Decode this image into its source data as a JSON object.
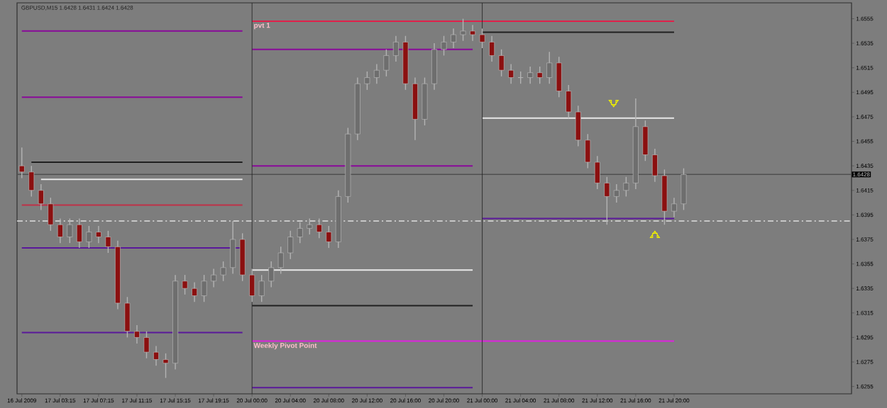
{
  "chart_data": {
    "type": "candlestick",
    "title": "GBPUSD,M15 1.6428 1.6431 1.6424 1.6428",
    "categories": [
      "16 Jul 2009",
      null,
      null,
      null,
      "17 Jul 03:15",
      null,
      null,
      null,
      "17 Jul 07:15",
      null,
      null,
      null,
      "17 Jul 11:15",
      null,
      null,
      null,
      "17 Jul 15:15",
      null,
      null,
      null,
      "17 Jul 19:15",
      null,
      null,
      null,
      "20 Jul 00:00",
      null,
      null,
      null,
      "20 Jul 04:00",
      null,
      null,
      null,
      "20 Jul 08:00",
      null,
      null,
      null,
      "20 Jul 12:00",
      null,
      null,
      null,
      "20 Jul 16:00",
      null,
      null,
      null,
      "20 Jul 20:00",
      null,
      null,
      null,
      "21 Jul 00:00",
      null,
      null,
      null,
      "21 Jul 04:00",
      null,
      null,
      null,
      "21 Jul 08:00",
      null,
      null,
      null,
      "21 Jul 12:00",
      null,
      null,
      null,
      "21 Jul 16:00",
      null,
      null,
      null,
      "21 Jul 20:00",
      null,
      null,
      null,
      null,
      null,
      null,
      null,
      null,
      null,
      null,
      null,
      null,
      null,
      null,
      null,
      null,
      null,
      null
    ],
    "ohlc": [
      [
        1.6435,
        1.645,
        1.6425,
        1.643
      ],
      [
        1.643,
        1.6435,
        1.641,
        1.6415
      ],
      [
        1.6415,
        1.642,
        1.6399,
        1.6404
      ],
      [
        1.6404,
        1.6409,
        1.6382,
        1.6387
      ],
      [
        1.6387,
        1.6392,
        1.6372,
        1.6377
      ],
      [
        1.6377,
        1.6392,
        1.6372,
        1.6387
      ],
      [
        1.6387,
        1.6392,
        1.6368,
        1.6373
      ],
      [
        1.6373,
        1.6386,
        1.6368,
        1.6381
      ],
      [
        1.6381,
        1.6386,
        1.6372,
        1.6377
      ],
      [
        1.6377,
        1.6382,
        1.6364,
        1.6369
      ],
      [
        1.6369,
        1.6374,
        1.6318,
        1.6323
      ],
      [
        1.6323,
        1.6328,
        1.6295,
        1.63
      ],
      [
        1.63,
        1.6305,
        1.629,
        1.6295
      ],
      [
        1.6295,
        1.63,
        1.6278,
        1.6283
      ],
      [
        1.6283,
        1.6288,
        1.6272,
        1.6277
      ],
      [
        1.6277,
        1.6282,
        1.6262,
        1.6274
      ],
      [
        1.6274,
        1.6346,
        1.6269,
        1.6341
      ],
      [
        1.6341,
        1.6346,
        1.633,
        1.6335
      ],
      [
        1.6335,
        1.634,
        1.6324,
        1.6329
      ],
      [
        1.6329,
        1.6346,
        1.6324,
        1.6341
      ],
      [
        1.6341,
        1.6351,
        1.6336,
        1.6346
      ],
      [
        1.6346,
        1.6357,
        1.6341,
        1.6352
      ],
      [
        1.6352,
        1.639,
        1.6347,
        1.6375
      ],
      [
        1.6375,
        1.638,
        1.6341,
        1.6346
      ],
      [
        1.6346,
        1.6351,
        1.6324,
        1.6329
      ],
      [
        1.6329,
        1.6346,
        1.6324,
        1.6341
      ],
      [
        1.6341,
        1.6357,
        1.6336,
        1.6352
      ],
      [
        1.6352,
        1.6369,
        1.6347,
        1.6364
      ],
      [
        1.6364,
        1.6382,
        1.6359,
        1.6377
      ],
      [
        1.6377,
        1.6389,
        1.6372,
        1.6384
      ],
      [
        1.6384,
        1.6392,
        1.6379,
        1.6387
      ],
      [
        1.6387,
        1.6392,
        1.6376,
        1.6381
      ],
      [
        1.6381,
        1.6386,
        1.6368,
        1.6373
      ],
      [
        1.6373,
        1.6415,
        1.6368,
        1.641
      ],
      [
        1.641,
        1.6466,
        1.6405,
        1.6461
      ],
      [
        1.6461,
        1.6507,
        1.6456,
        1.6502
      ],
      [
        1.6502,
        1.6512,
        1.6497,
        1.6507
      ],
      [
        1.6507,
        1.6518,
        1.6502,
        1.6513
      ],
      [
        1.6513,
        1.653,
        1.6508,
        1.6525
      ],
      [
        1.6525,
        1.6541,
        1.652,
        1.6536
      ],
      [
        1.6536,
        1.6541,
        1.6497,
        1.6502
      ],
      [
        1.6502,
        1.6507,
        1.6456,
        1.6473
      ],
      [
        1.6473,
        1.6507,
        1.6468,
        1.6502
      ],
      [
        1.6502,
        1.6535,
        1.6497,
        1.653
      ],
      [
        1.653,
        1.6541,
        1.6525,
        1.6536
      ],
      [
        1.6536,
        1.6547,
        1.6531,
        1.6542
      ],
      [
        1.6542,
        1.6555,
        1.6537,
        1.6545
      ],
      [
        1.6545,
        1.655,
        1.6537,
        1.6542
      ],
      [
        1.6542,
        1.6547,
        1.6531,
        1.6536
      ],
      [
        1.6536,
        1.6541,
        1.652,
        1.6525
      ],
      [
        1.6525,
        1.653,
        1.6508,
        1.6513
      ],
      [
        1.6513,
        1.6518,
        1.6502,
        1.6507
      ],
      [
        1.6507,
        1.6512,
        1.6502,
        1.6507
      ],
      [
        1.6507,
        1.6516,
        1.6502,
        1.6511
      ],
      [
        1.6511,
        1.6516,
        1.6502,
        1.6507
      ],
      [
        1.6507,
        1.6528,
        1.6502,
        1.6519
      ],
      [
        1.6519,
        1.6524,
        1.6491,
        1.6496
      ],
      [
        1.6496,
        1.6501,
        1.6474,
        1.6479
      ],
      [
        1.6479,
        1.6484,
        1.6451,
        1.6456
      ],
      [
        1.6456,
        1.6461,
        1.6433,
        1.6438
      ],
      [
        1.6438,
        1.6443,
        1.6416,
        1.6421
      ],
      [
        1.6421,
        1.6426,
        1.6387,
        1.641
      ],
      [
        1.641,
        1.642,
        1.6405,
        1.6415
      ],
      [
        1.6415,
        1.6426,
        1.641,
        1.6421
      ],
      [
        1.6421,
        1.649,
        1.6416,
        1.6467
      ],
      [
        1.6467,
        1.6472,
        1.6439,
        1.6444
      ],
      [
        1.6444,
        1.6449,
        1.6422,
        1.6427
      ],
      [
        1.6427,
        1.6432,
        1.6387,
        1.6398
      ],
      [
        1.6398,
        1.6409,
        1.6393,
        1.6404
      ],
      [
        1.6404,
        1.6433,
        1.6399,
        1.6428
      ],
      null,
      null,
      null,
      null,
      null,
      null,
      null,
      null,
      null,
      null,
      null,
      null,
      null,
      null,
      null,
      null,
      null
    ],
    "series": [
      {
        "type": "line",
        "color": "#8a0a9a",
        "values": [
          1.6545,
          1.6545,
          1.6545,
          1.6545,
          1.6545,
          1.6545,
          1.6545,
          1.6545,
          1.6545,
          1.6545,
          1.6545,
          1.6545,
          1.6545,
          1.6545,
          1.6545,
          1.6545,
          1.6545,
          1.6545,
          1.6545,
          1.6545,
          1.6545,
          1.6545,
          1.6545,
          1.6545,
          null,
          null,
          null,
          null,
          null,
          null,
          null,
          null,
          null,
          null,
          null,
          null,
          null,
          null,
          null,
          null,
          null,
          null,
          null,
          null,
          null,
          null,
          null,
          null,
          null,
          null,
          null,
          null,
          null,
          null,
          null,
          null,
          null,
          null,
          null,
          null,
          null,
          null,
          null,
          null,
          null,
          null,
          null,
          null,
          null,
          null,
          null,
          null,
          null,
          null,
          null,
          null,
          null,
          null,
          null,
          null,
          null,
          null,
          null,
          null,
          null,
          null,
          null
        ]
      },
      {
        "type": "line",
        "color": "#8a0a9a",
        "values": [
          1.6491,
          1.6491,
          1.6491,
          1.6491,
          1.6491,
          1.6491,
          1.6491,
          1.6491,
          1.6491,
          1.6491,
          1.6491,
          1.6491,
          1.6491,
          1.6491,
          1.6491,
          1.6491,
          1.6491,
          1.6491,
          1.6491,
          1.6491,
          1.6491,
          1.6491,
          1.6491,
          1.6491,
          null,
          null,
          null,
          null,
          null,
          null,
          null,
          null,
          null,
          null,
          null,
          null,
          null,
          null,
          null,
          null,
          null,
          null,
          null,
          null,
          null,
          null,
          null,
          null,
          null,
          null,
          null,
          null,
          null,
          null,
          null,
          null,
          null,
          null,
          null,
          null,
          null,
          null,
          null,
          null,
          null,
          null,
          null,
          null,
          null,
          null,
          null,
          null,
          null,
          null,
          null,
          null,
          null,
          null,
          null,
          null,
          null,
          null,
          null,
          null,
          null,
          null,
          null
        ]
      },
      {
        "type": "line",
        "color": "#202020",
        "values": [
          null,
          1.6438,
          1.6438,
          1.6438,
          1.6438,
          1.6438,
          1.6438,
          1.6438,
          1.6438,
          1.6438,
          1.6438,
          1.6438,
          1.6438,
          1.6438,
          1.6438,
          1.6438,
          1.6438,
          1.6438,
          1.6438,
          1.6438,
          1.6438,
          1.6438,
          1.6438,
          1.6438,
          null,
          null,
          null,
          null,
          null,
          null,
          null,
          null,
          null,
          null,
          null,
          null,
          null,
          null,
          null,
          null,
          null,
          null,
          null,
          null,
          null,
          null,
          null,
          null,
          null,
          null,
          null,
          null,
          null,
          null,
          null,
          null,
          null,
          null,
          null,
          null,
          null,
          null,
          null,
          null,
          null,
          null,
          null,
          null,
          null,
          null,
          null,
          null,
          null,
          null,
          null,
          null,
          null,
          null,
          null,
          null,
          null,
          null,
          null,
          null,
          null,
          null,
          null
        ]
      },
      {
        "type": "line",
        "color": "#e8e8e8",
        "values": [
          null,
          null,
          1.6424,
          1.6424,
          1.6424,
          1.6424,
          1.6424,
          1.6424,
          1.6424,
          1.6424,
          1.6424,
          1.6424,
          1.6424,
          1.6424,
          1.6424,
          1.6424,
          1.6424,
          1.6424,
          1.6424,
          1.6424,
          1.6424,
          1.6424,
          1.6424,
          1.6424,
          null,
          null,
          null,
          null,
          null,
          null,
          null,
          null,
          null,
          null,
          null,
          null,
          null,
          null,
          null,
          null,
          null,
          null,
          null,
          null,
          null,
          null,
          null,
          null,
          null,
          null,
          null,
          null,
          null,
          null,
          null,
          null,
          null,
          null,
          null,
          null,
          null,
          null,
          null,
          null,
          null,
          null,
          null,
          null,
          null,
          null,
          null,
          null,
          null,
          null,
          null,
          null,
          null,
          null,
          null,
          null,
          null,
          null,
          null,
          null,
          null,
          null,
          null
        ]
      },
      {
        "type": "line",
        "color": "#c03048",
        "values": [
          1.6403,
          1.6403,
          1.6403,
          1.6403,
          1.6403,
          1.6403,
          1.6403,
          1.6403,
          1.6403,
          1.6403,
          1.6403,
          1.6403,
          1.6403,
          1.6403,
          1.6403,
          1.6403,
          1.6403,
          1.6403,
          1.6403,
          1.6403,
          1.6403,
          1.6403,
          1.6403,
          1.6403,
          null,
          null,
          null,
          null,
          null,
          null,
          null,
          null,
          null,
          null,
          null,
          null,
          null,
          null,
          null,
          null,
          null,
          null,
          null,
          null,
          null,
          null,
          null,
          null,
          null,
          null,
          null,
          null,
          null,
          null,
          null,
          null,
          null,
          null,
          null,
          null,
          null,
          null,
          null,
          null,
          null,
          null,
          null,
          null,
          null,
          null,
          null,
          null,
          null,
          null,
          null,
          null,
          null,
          null,
          null,
          null,
          null,
          null,
          null,
          null,
          null,
          null,
          null
        ]
      },
      {
        "type": "line",
        "color": "#5a189a",
        "values": [
          1.6368,
          1.6368,
          1.6368,
          1.6368,
          1.6368,
          1.6368,
          1.6368,
          1.6368,
          1.6368,
          1.6368,
          1.6368,
          1.6368,
          1.6368,
          1.6368,
          1.6368,
          1.6368,
          1.6368,
          1.6368,
          1.6368,
          1.6368,
          1.6368,
          1.6368,
          1.6368,
          1.6368,
          null,
          null,
          null,
          null,
          null,
          null,
          null,
          null,
          null,
          null,
          null,
          null,
          null,
          null,
          null,
          null,
          null,
          null,
          null,
          null,
          null,
          null,
          null,
          null,
          null,
          null,
          null,
          null,
          null,
          null,
          null,
          null,
          null,
          null,
          null,
          null,
          null,
          null,
          null,
          null,
          null,
          null,
          null,
          null,
          null,
          null,
          null,
          null,
          null,
          null,
          null,
          null,
          null,
          null,
          null,
          null,
          null,
          null,
          null,
          null,
          null,
          null,
          null
        ]
      },
      {
        "type": "line",
        "color": "#5a189a",
        "values": [
          1.6299,
          1.6299,
          1.6299,
          1.6299,
          1.6299,
          1.6299,
          1.6299,
          1.6299,
          1.6299,
          1.6299,
          1.6299,
          1.6299,
          1.6299,
          1.6299,
          1.6299,
          1.6299,
          1.6299,
          1.6299,
          1.6299,
          1.6299,
          1.6299,
          1.6299,
          1.6299,
          1.6299,
          null,
          null,
          null,
          null,
          null,
          null,
          null,
          null,
          null,
          null,
          null,
          null,
          null,
          null,
          null,
          null,
          null,
          null,
          null,
          null,
          null,
          null,
          null,
          null,
          null,
          null,
          null,
          null,
          null,
          null,
          null,
          null,
          null,
          null,
          null,
          null,
          null,
          null,
          null,
          null,
          null,
          null,
          null,
          null,
          null,
          null,
          null,
          null,
          null,
          null,
          null,
          null,
          null,
          null,
          null,
          null,
          null,
          null,
          null,
          null,
          null,
          null,
          null
        ]
      },
      {
        "type": "line",
        "color": "#e0204a",
        "values": [
          null,
          null,
          null,
          null,
          null,
          null,
          null,
          null,
          null,
          null,
          null,
          null,
          null,
          null,
          null,
          null,
          null,
          null,
          null,
          null,
          null,
          null,
          null,
          null,
          1.6553,
          1.6553,
          1.6553,
          1.6553,
          1.6553,
          1.6553,
          1.6553,
          1.6553,
          1.6553,
          1.6553,
          1.6553,
          1.6553,
          1.6553,
          1.6553,
          1.6553,
          1.6553,
          1.6553,
          1.6553,
          1.6553,
          1.6553,
          1.6553,
          1.6553,
          1.6553,
          1.6553,
          1.6553,
          1.6553,
          1.6553,
          1.6553,
          1.6553,
          1.6553,
          1.6553,
          1.6553,
          1.6553,
          1.6553,
          1.6553,
          1.6553,
          1.6553,
          1.6553,
          1.6553,
          1.6553,
          1.6553,
          1.6553,
          1.6553,
          1.6553,
          1.6553,
          null,
          null,
          null,
          null,
          null,
          null,
          null,
          null,
          null,
          null,
          null,
          null,
          null,
          null,
          null,
          null,
          null,
          null
        ]
      },
      {
        "type": "line",
        "color": "#8a0a9a",
        "values": [
          null,
          null,
          null,
          null,
          null,
          null,
          null,
          null,
          null,
          null,
          null,
          null,
          null,
          null,
          null,
          null,
          null,
          null,
          null,
          null,
          null,
          null,
          null,
          null,
          1.653,
          1.653,
          1.653,
          1.653,
          1.653,
          1.653,
          1.653,
          1.653,
          1.653,
          1.653,
          1.653,
          1.653,
          1.653,
          1.653,
          1.653,
          1.653,
          1.653,
          1.653,
          1.653,
          1.653,
          1.653,
          1.653,
          1.653,
          1.653,
          null,
          null,
          null,
          null,
          null,
          null,
          null,
          null,
          null,
          null,
          null,
          null,
          null,
          null,
          null,
          null,
          null,
          null,
          null,
          null,
          null,
          null,
          null,
          null,
          null,
          null,
          null,
          null,
          null,
          null,
          null,
          null,
          null,
          null,
          null,
          null,
          null,
          null,
          null
        ]
      },
      {
        "type": "line",
        "color": "#8a0a9a",
        "values": [
          null,
          null,
          null,
          null,
          null,
          null,
          null,
          null,
          null,
          null,
          null,
          null,
          null,
          null,
          null,
          null,
          null,
          null,
          null,
          null,
          null,
          null,
          null,
          null,
          1.6435,
          1.6435,
          1.6435,
          1.6435,
          1.6435,
          1.6435,
          1.6435,
          1.6435,
          1.6435,
          1.6435,
          1.6435,
          1.6435,
          1.6435,
          1.6435,
          1.6435,
          1.6435,
          1.6435,
          1.6435,
          1.6435,
          1.6435,
          1.6435,
          1.6435,
          1.6435,
          1.6435,
          null,
          null,
          null,
          null,
          null,
          null,
          null,
          null,
          null,
          null,
          null,
          null,
          null,
          null,
          null,
          null,
          null,
          null,
          null,
          null,
          null,
          null,
          null,
          null,
          null,
          null,
          null,
          null,
          null,
          null,
          null,
          null,
          null,
          null,
          null,
          null,
          null,
          null,
          null
        ]
      },
      {
        "type": "line",
        "color": "#e8e8e8",
        "values": [
          null,
          null,
          null,
          null,
          null,
          null,
          null,
          null,
          null,
          null,
          null,
          null,
          null,
          null,
          null,
          null,
          null,
          null,
          null,
          null,
          null,
          null,
          null,
          null,
          1.635,
          1.635,
          1.635,
          1.635,
          1.635,
          1.635,
          1.635,
          1.635,
          1.635,
          1.635,
          1.635,
          1.635,
          1.635,
          1.635,
          1.635,
          1.635,
          1.635,
          1.635,
          1.635,
          1.635,
          1.635,
          1.635,
          1.635,
          1.635,
          null,
          null,
          null,
          null,
          null,
          null,
          null,
          null,
          null,
          null,
          null,
          null,
          null,
          null,
          null,
          null,
          null,
          null,
          null,
          null,
          null,
          null,
          null,
          null,
          null,
          null,
          null,
          null,
          null,
          null,
          null,
          null,
          null,
          null,
          null,
          null,
          null,
          null,
          null
        ]
      },
      {
        "type": "line",
        "color": "#202020",
        "values": [
          null,
          null,
          null,
          null,
          null,
          null,
          null,
          null,
          null,
          null,
          null,
          null,
          null,
          null,
          null,
          null,
          null,
          null,
          null,
          null,
          null,
          null,
          null,
          null,
          1.6321,
          1.6321,
          1.6321,
          1.6321,
          1.6321,
          1.6321,
          1.6321,
          1.6321,
          1.6321,
          1.6321,
          1.6321,
          1.6321,
          1.6321,
          1.6321,
          1.6321,
          1.6321,
          1.6321,
          1.6321,
          1.6321,
          1.6321,
          1.6321,
          1.6321,
          1.6321,
          1.6321,
          null,
          null,
          null,
          null,
          null,
          null,
          null,
          null,
          null,
          null,
          null,
          null,
          null,
          null,
          null,
          null,
          null,
          null,
          null,
          null,
          null,
          null,
          null,
          null,
          null,
          null,
          null,
          null,
          null,
          null,
          null,
          null,
          null,
          null,
          null,
          null,
          null,
          null,
          null
        ]
      },
      {
        "type": "line",
        "color": "#202020",
        "values": [
          null,
          null,
          null,
          null,
          null,
          null,
          null,
          null,
          null,
          null,
          null,
          null,
          null,
          null,
          null,
          null,
          null,
          null,
          null,
          null,
          null,
          null,
          null,
          null,
          null,
          null,
          null,
          null,
          null,
          null,
          null,
          null,
          null,
          null,
          null,
          null,
          null,
          null,
          null,
          null,
          null,
          null,
          null,
          null,
          null,
          null,
          null,
          null,
          1.6544,
          1.6544,
          1.6544,
          1.6544,
          1.6544,
          1.6544,
          1.6544,
          1.6544,
          1.6544,
          1.6544,
          1.6544,
          1.6544,
          1.6544,
          1.6544,
          1.6544,
          1.6544,
          1.6544,
          1.6544,
          1.6544,
          1.6544,
          1.6544,
          null,
          null,
          null,
          null,
          null,
          null,
          null,
          null,
          null,
          null,
          null,
          null,
          null,
          null,
          null,
          null,
          null,
          null
        ]
      },
      {
        "type": "line",
        "color": "#e8e8e8",
        "values": [
          null,
          null,
          null,
          null,
          null,
          null,
          null,
          null,
          null,
          null,
          null,
          null,
          null,
          null,
          null,
          null,
          null,
          null,
          null,
          null,
          null,
          null,
          null,
          null,
          null,
          null,
          null,
          null,
          null,
          null,
          null,
          null,
          null,
          null,
          null,
          null,
          null,
          null,
          null,
          null,
          null,
          null,
          null,
          null,
          null,
          null,
          null,
          null,
          1.6474,
          1.6474,
          1.6474,
          1.6474,
          1.6474,
          1.6474,
          1.6474,
          1.6474,
          1.6474,
          1.6474,
          1.6474,
          1.6474,
          1.6474,
          1.6474,
          1.6474,
          1.6474,
          1.6474,
          1.6474,
          1.6474,
          1.6474,
          1.6474,
          null,
          null,
          null,
          null,
          null,
          null,
          null,
          null,
          null,
          null,
          null,
          null,
          null,
          null,
          null,
          null,
          null,
          null
        ]
      },
      {
        "type": "line",
        "color": "#5a189a",
        "values": [
          null,
          null,
          null,
          null,
          null,
          null,
          null,
          null,
          null,
          null,
          null,
          null,
          null,
          null,
          null,
          null,
          null,
          null,
          null,
          null,
          null,
          null,
          null,
          null,
          null,
          null,
          null,
          null,
          null,
          null,
          null,
          null,
          null,
          null,
          null,
          null,
          null,
          null,
          null,
          null,
          null,
          null,
          null,
          null,
          null,
          null,
          null,
          null,
          1.6392,
          1.6392,
          1.6392,
          1.6392,
          1.6392,
          1.6392,
          1.6392,
          1.6392,
          1.6392,
          1.6392,
          1.6392,
          1.6392,
          1.6392,
          1.6392,
          1.6392,
          1.6392,
          1.6392,
          1.6392,
          1.6392,
          1.6392,
          1.6392,
          null,
          null,
          null,
          null,
          null,
          null,
          null,
          null,
          null,
          null,
          null,
          null,
          null,
          null,
          null,
          null,
          null,
          null
        ]
      },
      {
        "type": "line",
        "color": "#e020e0",
        "values": [
          null,
          null,
          null,
          null,
          null,
          null,
          null,
          null,
          null,
          null,
          null,
          null,
          null,
          null,
          null,
          null,
          null,
          null,
          null,
          null,
          null,
          null,
          null,
          null,
          1.6292,
          1.6292,
          1.6292,
          1.6292,
          1.6292,
          1.6292,
          1.6292,
          1.6292,
          1.6292,
          1.6292,
          1.6292,
          1.6292,
          1.6292,
          1.6292,
          1.6292,
          1.6292,
          1.6292,
          1.6292,
          1.6292,
          1.6292,
          1.6292,
          1.6292,
          1.6292,
          1.6292,
          1.6292,
          1.6292,
          1.6292,
          1.6292,
          1.6292,
          1.6292,
          1.6292,
          1.6292,
          1.6292,
          1.6292,
          1.6292,
          1.6292,
          1.6292,
          1.6292,
          1.6292,
          1.6292,
          1.6292,
          1.6292,
          1.6292,
          1.6292,
          1.6292,
          null,
          null,
          null,
          null,
          null,
          null,
          null,
          null,
          null,
          null,
          null,
          null,
          null,
          null,
          null,
          null,
          null,
          null
        ]
      },
      {
        "type": "line",
        "color": "#5a189a",
        "values": [
          null,
          null,
          null,
          null,
          null,
          null,
          null,
          null,
          null,
          null,
          null,
          null,
          null,
          null,
          null,
          null,
          null,
          null,
          null,
          null,
          null,
          null,
          null,
          null,
          1.6254,
          1.6254,
          1.6254,
          1.6254,
          1.6254,
          1.6254,
          1.6254,
          1.6254,
          1.6254,
          1.6254,
          1.6254,
          1.6254,
          1.6254,
          1.6254,
          1.6254,
          1.6254,
          1.6254,
          1.6254,
          1.6254,
          1.6254,
          1.6254,
          1.6254,
          1.6254,
          1.6254,
          null,
          null,
          null,
          null,
          null,
          null,
          null,
          null,
          null,
          null,
          null,
          null,
          null,
          null,
          null,
          null,
          null,
          null,
          null,
          null,
          null,
          null,
          null,
          null,
          null,
          null,
          null,
          null,
          null,
          null,
          null,
          null,
          null,
          null,
          null,
          null,
          null,
          null,
          null
        ]
      }
    ],
    "ref_lines": [
      {
        "axis": "y",
        "value": 1.6428,
        "label": "1.6428",
        "color": "#505050"
      },
      {
        "axis": "y",
        "value": 1.639,
        "color": "#e0e0e0",
        "line_style": "dashed"
      },
      {
        "axis": "x",
        "value": "20 Jul 00:00",
        "color": "#202020"
      },
      {
        "axis": "x",
        "value": "21 Jul 00:00",
        "color": "#202020"
      }
    ],
    "annotations": [
      "pvt 1",
      "Weekly Pivot Point"
    ],
    "ylim": [
      1.6249,
      1.6568
    ],
    "yticks": [
      1.6255,
      1.6275,
      1.6295,
      1.6315,
      1.6335,
      1.6355,
      1.6375,
      1.6395,
      1.6415,
      1.6435,
      1.6455,
      1.6475,
      1.6495,
      1.6515,
      1.6535,
      1.6555
    ]
  }
}
